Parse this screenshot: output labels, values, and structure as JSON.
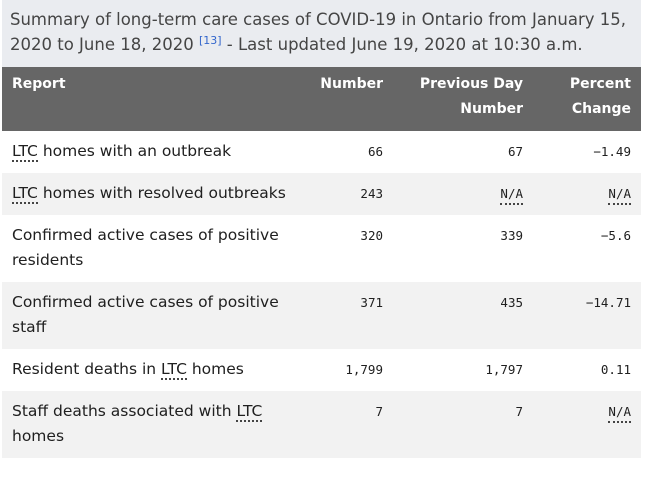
{
  "caption": {
    "text": "Summary of long-term care cases of COVID-19 in Ontario from January 15, 2020 to June 18, 2020",
    "ref": "[13]",
    "updated": " - Last updated June 19, 2020 at 10:30 a.m."
  },
  "headers": {
    "report": "Report",
    "number": "Number",
    "prev_line1": "Previous Day",
    "prev_line2": "Number",
    "pct_line1": "Percent",
    "pct_line2": "Change"
  },
  "rows": [
    {
      "pre": "",
      "abbr": "LTC",
      "post": " homes with an outbreak",
      "number": "66",
      "previous": "67",
      "change": "−1.49"
    },
    {
      "pre": "",
      "abbr": "LTC",
      "post": " homes with resolved outbreaks",
      "number": "243",
      "previous": "N/A",
      "change": "N/A"
    },
    {
      "pre": "Confirmed active cases of positive residents",
      "abbr": "",
      "post": "",
      "number": "320",
      "previous": "339",
      "change": "−5.6"
    },
    {
      "pre": "Confirmed active cases of positive staff",
      "abbr": "",
      "post": "",
      "number": "371",
      "previous": "435",
      "change": "−14.71"
    },
    {
      "pre": "Resident deaths in ",
      "abbr": "LTC",
      "post": " homes",
      "number": "1,799",
      "previous": "1,797",
      "change": "0.11"
    },
    {
      "pre": "Staff deaths associated with ",
      "abbr": "LTC",
      "post": " homes",
      "number": "7",
      "previous": "7",
      "change": "N/A"
    }
  ]
}
